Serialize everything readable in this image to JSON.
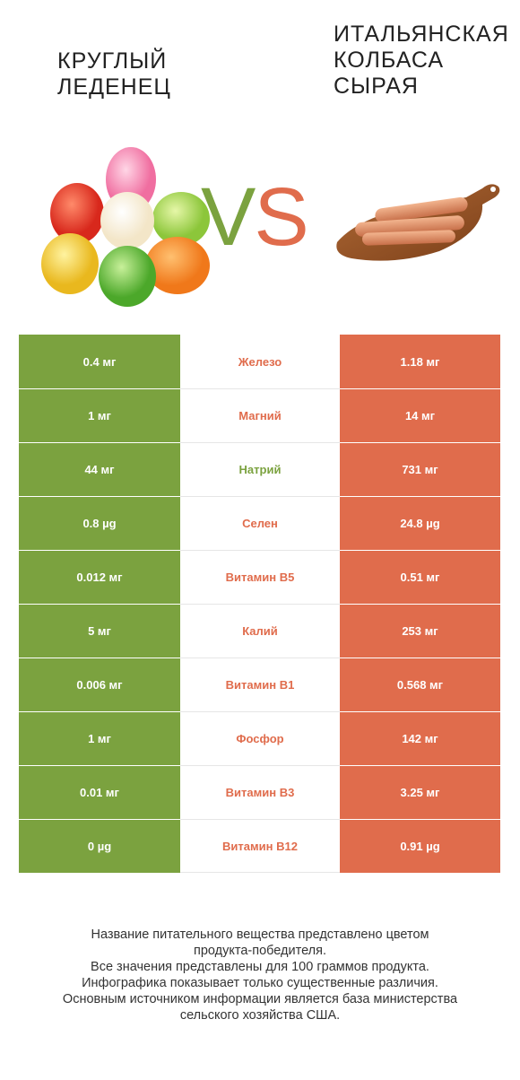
{
  "left_food": {
    "title": "Круглый\nледенец",
    "color": "#7ba23f"
  },
  "right_food": {
    "title": "Итальянская\nколбаса\nсырая",
    "color": "#e06c4c"
  },
  "vs": {
    "v": "V",
    "s": "S"
  },
  "rows": [
    {
      "nutrient": "Железо",
      "left": "0.4 мг",
      "right": "1.18 мг",
      "winner": "right"
    },
    {
      "nutrient": "Магний",
      "left": "1 мг",
      "right": "14 мг",
      "winner": "right"
    },
    {
      "nutrient": "Натрий",
      "left": "44 мг",
      "right": "731 мг",
      "winner": "left"
    },
    {
      "nutrient": "Селен",
      "left": "0.8 µg",
      "right": "24.8 µg",
      "winner": "right"
    },
    {
      "nutrient": "Витамин B5",
      "left": "0.012 мг",
      "right": "0.51 мг",
      "winner": "right"
    },
    {
      "nutrient": "Калий",
      "left": "5 мг",
      "right": "253 мг",
      "winner": "right"
    },
    {
      "nutrient": "Витамин B1",
      "left": "0.006 мг",
      "right": "0.568 мг",
      "winner": "right"
    },
    {
      "nutrient": "Фосфор",
      "left": "1 мг",
      "right": "142 мг",
      "winner": "right"
    },
    {
      "nutrient": "Витамин B3",
      "left": "0.01 мг",
      "right": "3.25 мг",
      "winner": "right"
    },
    {
      "nutrient": "Витамин B12",
      "left": "0 µg",
      "right": "0.91 µg",
      "winner": "right"
    }
  ],
  "footer": [
    "Название питательного вещества представлено цветом",
    "продукта-победителя.",
    "Все значения представлены для 100 граммов продукта.",
    "Инфографика показывает только существенные различия.",
    "Основным источником информации является база министерства",
    "сельского хозяйства США."
  ],
  "icons": {
    "left_image": "jelly-candies-image",
    "right_image": "sausages-on-board-image"
  }
}
